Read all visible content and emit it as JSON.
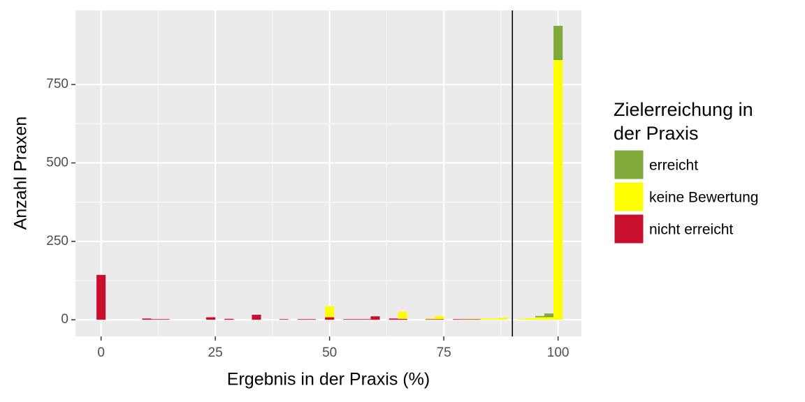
{
  "chart_data": {
    "type": "histogram",
    "x_label": "Ergebnis in der Praxis (%)",
    "y_label": "Anzahl Praxen",
    "legend_title": "Zielerreichung in der Praxis",
    "bins": [
      -1,
      1,
      3,
      5,
      7,
      9,
      11,
      13,
      15,
      17,
      19,
      21,
      23,
      25,
      27,
      29,
      31,
      33,
      35,
      37,
      39,
      41,
      43,
      45,
      47,
      49,
      51,
      53,
      55,
      57,
      59,
      61,
      63,
      65,
      67,
      69,
      71,
      73,
      75,
      77,
      79,
      81,
      83,
      85,
      87,
      89,
      91,
      93,
      95,
      97,
      99,
      101
    ],
    "series": [
      {
        "name": "erreicht",
        "color": "#7fa939",
        "values": [
          0,
          0,
          0,
          0,
          0,
          0,
          0,
          0,
          0,
          0,
          0,
          0,
          0,
          0,
          0,
          0,
          0,
          0,
          0,
          0,
          0,
          0,
          0,
          0,
          0,
          0,
          0,
          0,
          0,
          0,
          0,
          0,
          0,
          0,
          0,
          0,
          0,
          0,
          0,
          0,
          0,
          0,
          0,
          0,
          0,
          0,
          0,
          0,
          4,
          12,
          109
        ]
      },
      {
        "name": "keine Bewertung",
        "color": "#ffff00",
        "values": [
          0,
          0,
          0,
          0,
          0,
          0,
          0,
          0,
          0,
          0,
          0,
          0,
          0,
          0,
          0,
          0,
          0,
          0,
          0,
          0,
          0,
          0,
          0,
          0,
          0,
          35,
          0,
          0,
          0,
          0,
          0,
          0,
          0,
          23,
          0,
          0,
          2,
          10,
          0,
          0,
          1,
          1,
          4,
          4,
          6,
          0,
          3,
          5,
          8,
          8,
          828
        ]
      },
      {
        "name": "nicht erreicht",
        "color": "#c8102e",
        "values": [
          143,
          0,
          0,
          0,
          0,
          4,
          2,
          2,
          0,
          0,
          0,
          0,
          8,
          0,
          3,
          0,
          0,
          16,
          0,
          0,
          2,
          0,
          2,
          2,
          0,
          8,
          0,
          2,
          2,
          2,
          11,
          0,
          4,
          3,
          0,
          0,
          2,
          2,
          0,
          2,
          2,
          2,
          0,
          0,
          0,
          0,
          0,
          0,
          0,
          0,
          0
        ]
      }
    ],
    "vline": 90,
    "vline_color": "#000000",
    "xlim": [
      -5.6,
      105.1
    ],
    "xticks": [
      0,
      25,
      50,
      75,
      100
    ],
    "ylim": [
      -53,
      986
    ],
    "yticks": [
      0,
      250,
      500,
      750
    ],
    "grid": true,
    "legend_position": "right"
  }
}
